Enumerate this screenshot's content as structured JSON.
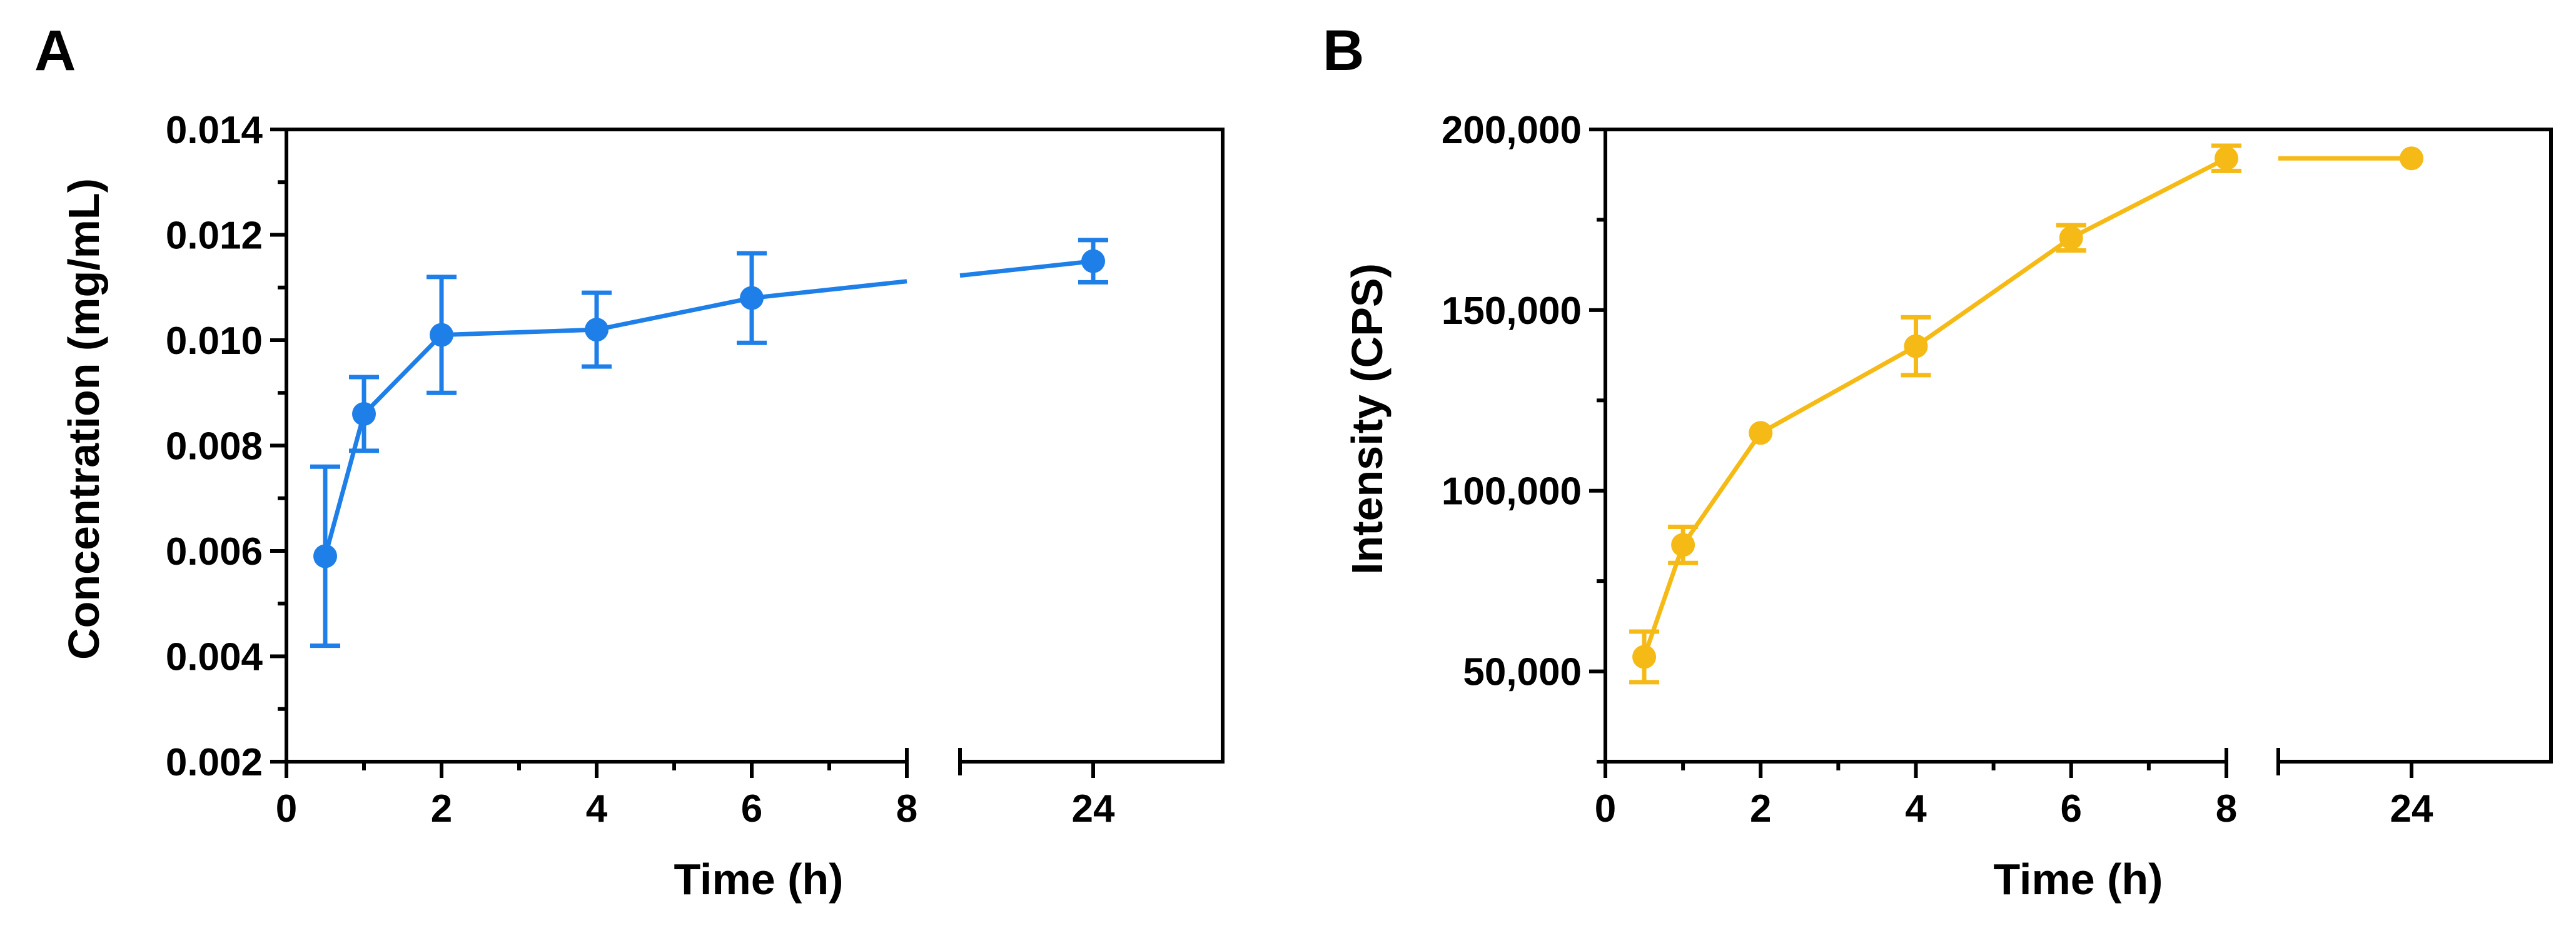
{
  "chart_data": [
    {
      "type": "line",
      "panel_label": "A",
      "xlabel": "Time (h)",
      "ylabel": "Concentration (mg/mL)",
      "x_tick_labels": [
        "0",
        "2",
        "4",
        "6",
        "8",
        "24"
      ],
      "y_tick_labels": [
        "0.002",
        "0.004",
        "0.006",
        "0.008",
        "0.010",
        "0.012",
        "0.014"
      ],
      "ylim": [
        0.002,
        0.014
      ],
      "x_axis_break": [
        8,
        24
      ],
      "color": "#1E7FE8",
      "series": [
        {
          "name": "Concentration",
          "x": [
            0.5,
            1,
            2,
            4,
            6,
            24
          ],
          "y": [
            0.0059,
            0.0086,
            0.0101,
            0.0102,
            0.0108,
            0.0115
          ],
          "error": [
            0.0017,
            0.0007,
            0.0011,
            0.0007,
            0.00085,
            0.0004
          ]
        }
      ]
    },
    {
      "type": "line",
      "panel_label": "B",
      "xlabel": "Time (h)",
      "ylabel": "Intensity (CPS)",
      "x_tick_labels": [
        "0",
        "2",
        "4",
        "6",
        "8",
        "24"
      ],
      "y_tick_labels": [
        "50,000",
        "100,000",
        "150,000",
        "200,000"
      ],
      "ylim": [
        25000,
        200000
      ],
      "x_axis_break": [
        8,
        24
      ],
      "color": "#F5BA16",
      "series": [
        {
          "name": "Intensity",
          "x": [
            0.5,
            1,
            2,
            4,
            6,
            8,
            24
          ],
          "y": [
            54000,
            85000,
            116000,
            140000,
            170000,
            192000,
            192000
          ],
          "error": [
            7000,
            5000,
            0,
            8000,
            3500,
            3500,
            0
          ]
        }
      ]
    }
  ]
}
